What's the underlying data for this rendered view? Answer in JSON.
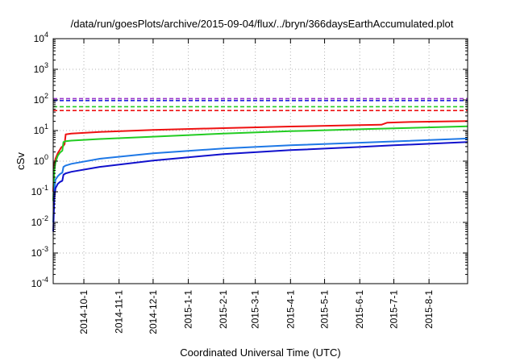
{
  "chart_data": {
    "type": "line",
    "title": "/data/run/goesPlots/archive/2015-09-04/flux/../bryn/366daysEarthAccumulated.plot",
    "xlabel": "Coordinated Universal Time (UTC)",
    "ylabel": "cSv",
    "yscale": "log",
    "ylim": [
      0.0001,
      10000
    ],
    "xlim": [
      "2014-09-04",
      "2015-09-04"
    ],
    "grid": true,
    "y_ticks": [
      {
        "base": "10",
        "exp": "-4"
      },
      {
        "base": "10",
        "exp": "-3"
      },
      {
        "base": "10",
        "exp": "-2"
      },
      {
        "base": "10",
        "exp": "-1"
      },
      {
        "base": "10",
        "exp": "0"
      },
      {
        "base": "10",
        "exp": "1"
      },
      {
        "base": "10",
        "exp": "2"
      },
      {
        "base": "10",
        "exp": "3"
      },
      {
        "base": "10",
        "exp": "4"
      }
    ],
    "x_ticks": [
      "2014-10-1",
      "2014-11-1",
      "2014-12-1",
      "2015-1-1",
      "2015-2-1",
      "2015-3-1",
      "2015-4-1",
      "2015-5-1",
      "2015-6-1",
      "2015-7-1",
      "2015-8-1"
    ],
    "x_tick_dates": [
      "2014-10-01",
      "2014-11-01",
      "2014-12-01",
      "2015-01-01",
      "2015-02-01",
      "2015-03-01",
      "2015-04-01",
      "2015-05-01",
      "2015-06-01",
      "2015-07-01",
      "2015-08-01"
    ],
    "reference_lines": [
      {
        "color": "#9933cc",
        "y": 110
      },
      {
        "color": "#2222dd",
        "y": 95
      },
      {
        "color": "#22cc22",
        "y": 60
      },
      {
        "color": "#ee1111",
        "y": 45
      }
    ],
    "series": [
      {
        "color": "#ee1111",
        "x": [
          "2014-09-04",
          "2014-09-05",
          "2014-09-06",
          "2014-09-08",
          "2014-09-10",
          "2014-09-11",
          "2014-09-13",
          "2014-09-14",
          "2014-09-15",
          "2014-09-20",
          "2014-10-15",
          "2014-12-01",
          "2015-02-01",
          "2015-04-01",
          "2015-06-01",
          "2015-06-20",
          "2015-06-25",
          "2015-07-15",
          "2015-09-04"
        ],
        "y": [
          0.1,
          0.8,
          1.2,
          1.8,
          2.4,
          2.8,
          3.2,
          3.6,
          7.5,
          8.0,
          9.0,
          10.5,
          12.0,
          13.5,
          15.0,
          15.5,
          18.0,
          19.0,
          20.5
        ]
      },
      {
        "color": "#22cc22",
        "x": [
          "2014-09-04",
          "2014-09-05",
          "2014-09-06",
          "2014-09-08",
          "2014-09-10",
          "2014-09-12",
          "2014-09-13",
          "2014-09-15",
          "2014-09-20",
          "2014-10-15",
          "2014-12-01",
          "2015-02-01",
          "2015-04-01",
          "2015-06-01",
          "2015-07-01",
          "2015-09-04"
        ],
        "y": [
          0.05,
          0.5,
          0.9,
          1.5,
          1.9,
          2.2,
          4.2,
          4.5,
          4.7,
          5.3,
          6.3,
          8.0,
          9.5,
          11.0,
          11.8,
          13.8
        ]
      },
      {
        "color": "#1e78e6",
        "x": [
          "2014-09-04",
          "2014-09-05",
          "2014-09-06",
          "2014-09-08",
          "2014-09-10",
          "2014-09-12",
          "2014-09-13",
          "2014-09-15",
          "2014-09-20",
          "2014-10-15",
          "2014-12-01",
          "2015-02-01",
          "2015-04-01",
          "2015-06-01",
          "2015-07-01",
          "2015-09-04"
        ],
        "y": [
          0.01,
          0.12,
          0.25,
          0.32,
          0.38,
          0.42,
          0.65,
          0.72,
          0.82,
          1.2,
          1.8,
          2.6,
          3.3,
          4.0,
          4.4,
          5.5
        ]
      },
      {
        "color": "#1010cc",
        "x": [
          "2014-09-04",
          "2014-09-05",
          "2014-09-06",
          "2014-09-08",
          "2014-09-10",
          "2014-09-12",
          "2014-09-13",
          "2014-09-15",
          "2014-09-20",
          "2014-10-15",
          "2014-12-01",
          "2015-02-01",
          "2015-04-01",
          "2015-06-01",
          "2015-07-01",
          "2015-09-04"
        ],
        "y": [
          0.005,
          0.06,
          0.13,
          0.18,
          0.21,
          0.23,
          0.36,
          0.4,
          0.45,
          0.65,
          1.05,
          1.7,
          2.3,
          2.9,
          3.3,
          4.2
        ]
      }
    ]
  }
}
